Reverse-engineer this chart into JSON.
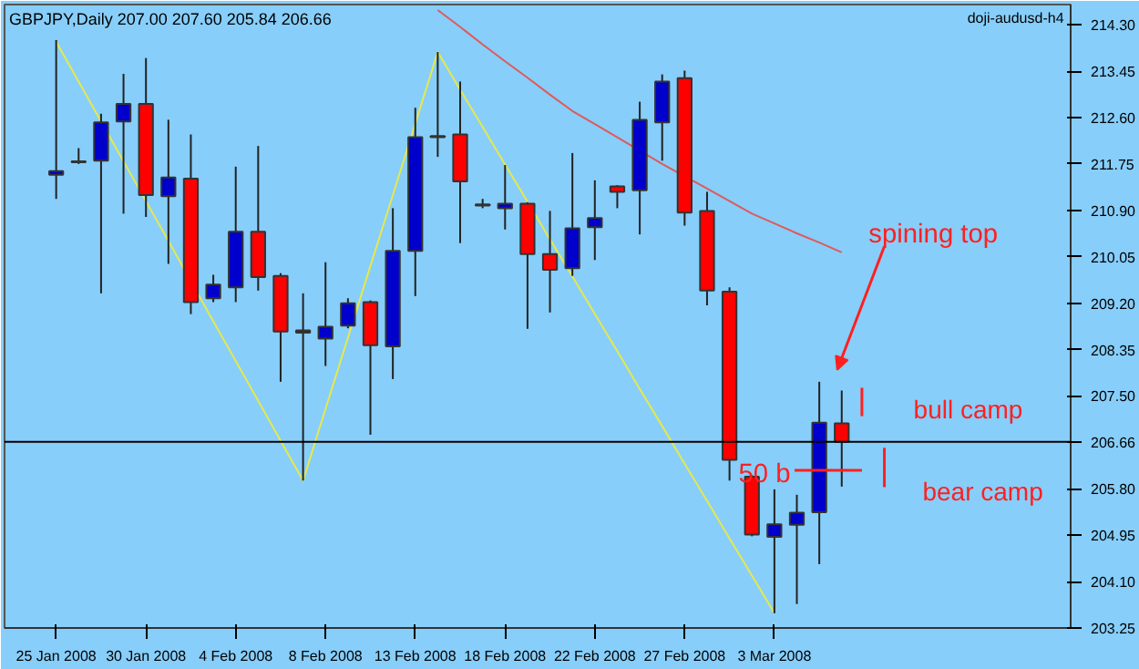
{
  "chart_data": {
    "type": "candlestick",
    "title": "GBPJPY,Daily  207.00 207.60 205.84 206.66",
    "annotations": [
      "doji-audusd-h4",
      "spining top",
      "bull camp",
      "bear camp",
      "50 b"
    ],
    "categories": [
      "25 Jan 2008",
      null,
      null,
      null,
      "30 Jan 2008",
      null,
      null,
      null,
      "4 Feb 2008",
      null,
      null,
      null,
      "8 Feb 2008",
      null,
      null,
      null,
      "13 Feb 2008",
      null,
      null,
      null,
      "18 Feb 2008",
      null,
      null,
      null,
      "22 Feb 2008",
      null,
      null,
      null,
      "27 Feb 2008",
      null,
      null,
      null,
      "3 Mar 2008",
      null,
      null,
      null
    ],
    "ohlc": [
      [
        211.55,
        214.02,
        211.11,
        211.62
      ],
      [
        211.78,
        212.04,
        211.75,
        211.8
      ],
      [
        211.81,
        212.67,
        209.38,
        212.51
      ],
      [
        212.53,
        213.4,
        210.84,
        212.85
      ],
      [
        212.85,
        213.69,
        210.78,
        211.18
      ],
      [
        211.16,
        212.56,
        209.92,
        211.5
      ],
      [
        211.48,
        212.29,
        209.0,
        209.22
      ],
      [
        209.29,
        209.72,
        209.22,
        209.54
      ],
      [
        209.49,
        211.7,
        209.22,
        210.51
      ],
      [
        210.51,
        212.08,
        209.43,
        209.68
      ],
      [
        209.7,
        209.75,
        207.76,
        208.68
      ],
      [
        208.7,
        209.38,
        205.95,
        208.66
      ],
      [
        208.55,
        209.95,
        208.05,
        208.77
      ],
      [
        208.79,
        209.29,
        208.74,
        209.2
      ],
      [
        209.22,
        209.25,
        206.79,
        208.43
      ],
      [
        208.41,
        210.94,
        207.81,
        210.16
      ],
      [
        210.16,
        212.78,
        209.33,
        212.24
      ],
      [
        212.24,
        213.8,
        211.88,
        212.26
      ],
      [
        212.29,
        213.26,
        210.3,
        211.43
      ],
      [
        210.99,
        211.11,
        210.94,
        211.01
      ],
      [
        210.94,
        211.73,
        210.55,
        211.02
      ],
      [
        211.02,
        211.05,
        208.73,
        210.1
      ],
      [
        210.1,
        210.89,
        209.03,
        209.81
      ],
      [
        209.84,
        211.95,
        209.7,
        210.57
      ],
      [
        210.59,
        211.45,
        209.99,
        210.76
      ],
      [
        211.34,
        211.36,
        210.94,
        211.24
      ],
      [
        211.27,
        212.89,
        210.46,
        212.56
      ],
      [
        212.51,
        213.39,
        211.81,
        213.26
      ],
      [
        213.32,
        213.46,
        210.62,
        210.86
      ],
      [
        210.89,
        211.24,
        209.16,
        209.43
      ],
      [
        209.41,
        209.49,
        205.95,
        206.33
      ],
      [
        206.02,
        206.05,
        204.93,
        204.96
      ],
      [
        204.92,
        205.79,
        203.52,
        205.15
      ],
      [
        205.14,
        205.69,
        203.69,
        205.36
      ],
      [
        205.37,
        207.76,
        204.42,
        207.01
      ],
      [
        207.0,
        207.6,
        205.84,
        206.66
      ]
    ],
    "colors": [
      "#0000cd",
      "#000000",
      "#0000cd",
      "#0000cd",
      "#ff0000",
      "#0000cd",
      "#ff0000",
      "#0000cd",
      "#0000cd",
      "#ff0000",
      "#ff0000",
      "#800000",
      "#0000cd",
      "#0000cd",
      "#ff0000",
      "#0000cd",
      "#0000cd",
      "#000000",
      "#ff0000",
      "#000000",
      "#0000cd",
      "#ff0000",
      "#ff0000",
      "#0000cd",
      "#0000cd",
      "#ff0000",
      "#0000cd",
      "#0000cd",
      "#ff0000",
      "#ff0000",
      "#ff0000",
      "#ff0000",
      "#0000cd",
      "#0000cd",
      "#0000cd",
      "#ff0000"
    ],
    "series": [
      {
        "type": "line",
        "color": "#e8e84a",
        "values": [
          213.99,
          213.26,
          212.53,
          211.8,
          211.07,
          210.34,
          null,
          208.87,
          208.14,
          207.41,
          206.68,
          205.95,
          207.26,
          208.57,
          209.88,
          211.18,
          212.49,
          213.8,
          213.11,
          212.43,
          211.74,
          211.06,
          210.37,
          209.69,
          209.0,
          208.32,
          207.63,
          206.95,
          206.26,
          205.58,
          204.89,
          204.21,
          203.52,
          null,
          null,
          null
        ]
      },
      {
        "type": "line",
        "color": "#e05a5a",
        "values": [
          null,
          null,
          null,
          null,
          null,
          null,
          null,
          null,
          null,
          null,
          null,
          null,
          null,
          null,
          null,
          null,
          null,
          214.57,
          214.26,
          213.94,
          213.63,
          213.33,
          213.02,
          212.72,
          212.48,
          212.24,
          null,
          211.75,
          null,
          211.3,
          211.07,
          210.84,
          210.66,
          210.48,
          210.31,
          210.13
        ]
      }
    ],
    "ylim": [
      203.25,
      214.67
    ],
    "yticks": [
      203.25,
      {
        "value": 204.1,
        "label": "204.10"
      },
      204.95,
      {
        "value": 205.8,
        "label": "205.80"
      },
      {
        "value": 207.5,
        "label": "207.50"
      },
      208.35,
      {
        "value": 209.2,
        "label": "209.20"
      },
      210.05,
      {
        "value": 210.9,
        "label": "210.90"
      },
      211.75,
      {
        "value": 212.6,
        "label": "212.60"
      },
      213.45,
      {
        "value": 214.3,
        "label": "214.30"
      }
    ],
    "ref_lines": [
      {
        "axis": "y",
        "value": 206.66,
        "label": "206.66",
        "color": "#000000"
      }
    ],
    "grid": false
  }
}
